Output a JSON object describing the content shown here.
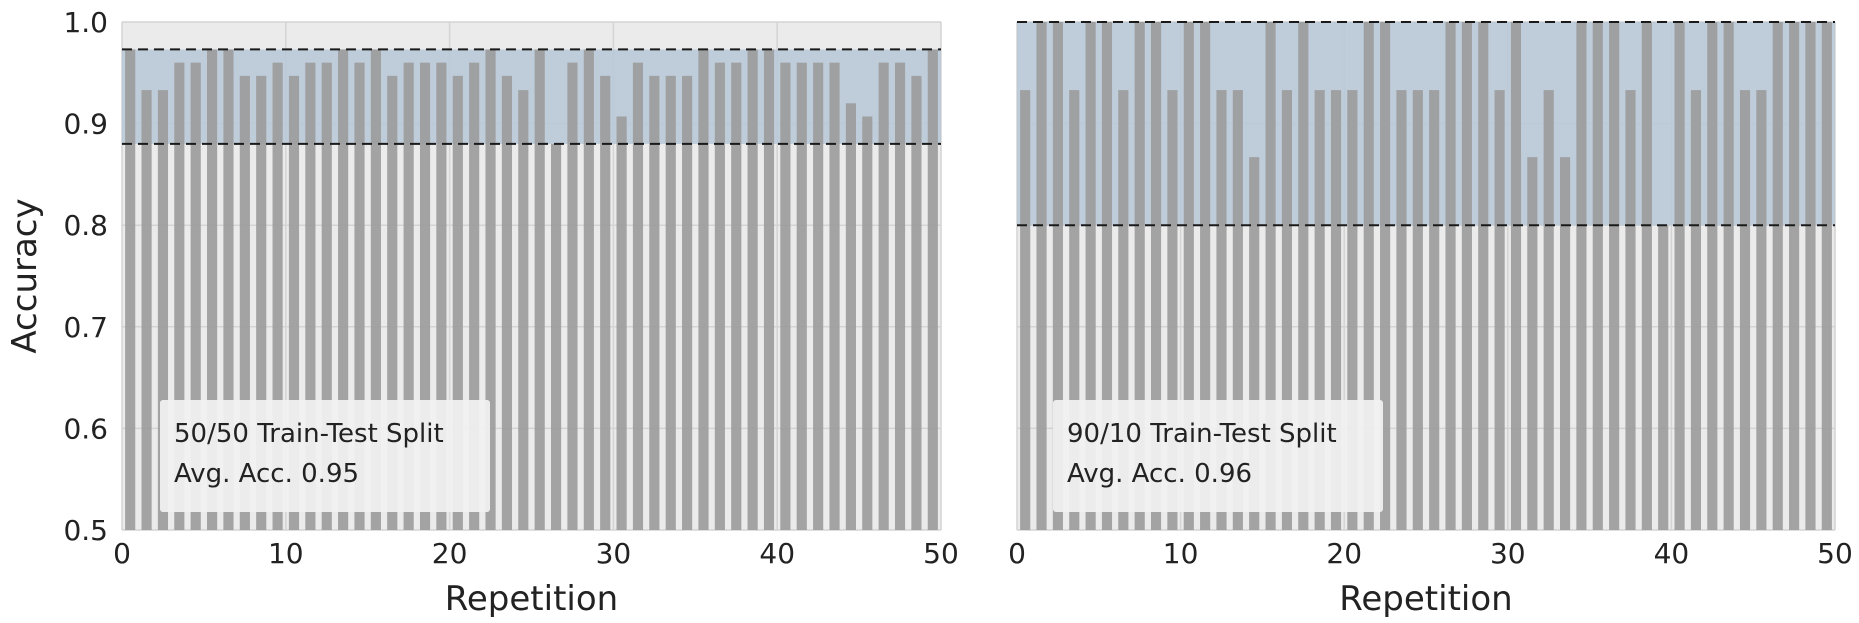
{
  "chart_data": [
    {
      "type": "bar",
      "xlabel": "Repetition",
      "ylabel": "Accuracy",
      "xlim": [
        0,
        50
      ],
      "ylim": [
        0.5,
        1.0
      ],
      "xticks": [
        "0",
        "10",
        "20",
        "30",
        "40",
        "50"
      ],
      "yticks": [
        "0.5",
        "0.6",
        "0.7",
        "0.8",
        "0.9",
        "1.0"
      ],
      "show_ylabel": true,
      "show_yticks": true,
      "grid": true,
      "annotation": [
        "50/50 Train-Test Split",
        "Avg. Acc. 0.95"
      ],
      "band": [
        0.88,
        0.973
      ],
      "x": [
        1,
        2,
        3,
        4,
        5,
        6,
        7,
        8,
        9,
        10,
        11,
        12,
        13,
        14,
        15,
        16,
        17,
        18,
        19,
        20,
        21,
        22,
        23,
        24,
        25,
        26,
        27,
        28,
        29,
        30,
        31,
        32,
        33,
        34,
        35,
        36,
        37,
        38,
        39,
        40,
        41,
        42,
        43,
        44,
        45,
        46,
        47,
        48,
        49,
        50
      ],
      "values": [
        0.973,
        0.933,
        0.933,
        0.96,
        0.96,
        0.973,
        0.973,
        0.947,
        0.947,
        0.96,
        0.947,
        0.96,
        0.96,
        0.973,
        0.96,
        0.973,
        0.947,
        0.96,
        0.96,
        0.96,
        0.947,
        0.96,
        0.973,
        0.947,
        0.933,
        0.973,
        0.88,
        0.96,
        0.973,
        0.947,
        0.907,
        0.96,
        0.947,
        0.947,
        0.947,
        0.973,
        0.96,
        0.96,
        0.973,
        0.973,
        0.96,
        0.96,
        0.96,
        0.96,
        0.92,
        0.907,
        0.96,
        0.96,
        0.947,
        0.973
      ]
    },
    {
      "type": "bar",
      "xlabel": "Repetition",
      "ylabel": "",
      "xlim": [
        0,
        50
      ],
      "ylim": [
        0.5,
        1.0
      ],
      "xticks": [
        "0",
        "10",
        "20",
        "30",
        "40",
        "50"
      ],
      "yticks": [],
      "show_ylabel": false,
      "show_yticks": false,
      "grid": true,
      "annotation": [
        "90/10 Train-Test Split",
        "Avg. Acc. 0.96"
      ],
      "band": [
        0.8,
        1.0
      ],
      "x": [
        1,
        2,
        3,
        4,
        5,
        6,
        7,
        8,
        9,
        10,
        11,
        12,
        13,
        14,
        15,
        16,
        17,
        18,
        19,
        20,
        21,
        22,
        23,
        24,
        25,
        26,
        27,
        28,
        29,
        30,
        31,
        32,
        33,
        34,
        35,
        36,
        37,
        38,
        39,
        40,
        41,
        42,
        43,
        44,
        45,
        46,
        47,
        48,
        49,
        50
      ],
      "values": [
        0.933,
        1.0,
        1.0,
        0.933,
        1.0,
        1.0,
        0.933,
        1.0,
        1.0,
        0.933,
        1.0,
        1.0,
        0.933,
        0.933,
        0.867,
        1.0,
        0.933,
        1.0,
        0.933,
        0.933,
        0.933,
        1.0,
        1.0,
        0.933,
        0.933,
        0.933,
        1.0,
        1.0,
        1.0,
        0.933,
        1.0,
        0.867,
        0.933,
        0.867,
        1.0,
        1.0,
        1.0,
        0.933,
        1.0,
        0.8,
        1.0,
        0.933,
        1.0,
        1.0,
        0.933,
        0.933,
        1.0,
        1.0,
        1.0,
        1.0
      ]
    }
  ],
  "colors": {
    "bar": "#9c9c9c",
    "band": "#b7c8d8",
    "axes_bg": "#ebebeb",
    "grid": "#d4d4d4",
    "box_bg": "#f1f1f1",
    "dash": "#1a1a1a"
  }
}
